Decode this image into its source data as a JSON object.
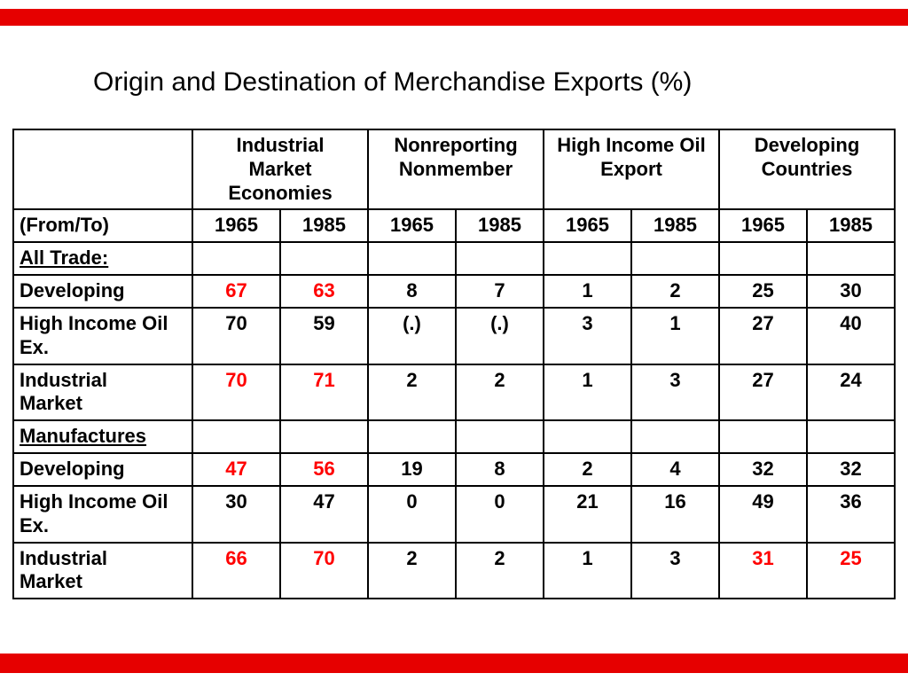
{
  "colors": {
    "accent_bar": "#e60000",
    "highlight_text": "#ff0000",
    "table_border": "#000000",
    "background": "#ffffff",
    "text": "#000000"
  },
  "slide": {
    "title": "Origin and Destination of Merchandise Exports (%)"
  },
  "chart_data": {
    "type": "table",
    "title": "Origin and Destination of Merchandise Exports (%)",
    "corner_label": "(From/To)",
    "column_groups": [
      {
        "label": "Industrial Market Economies",
        "lines": [
          "Industrial",
          "Market",
          "Economies"
        ],
        "years": [
          "1965",
          "1985"
        ]
      },
      {
        "label": "Nonreporting Nonmember",
        "lines": [
          "Nonreporting",
          "Nonmember"
        ],
        "years": [
          "1965",
          "1985"
        ]
      },
      {
        "label": "High Income Oil Export",
        "lines": [
          "High Income Oil",
          "Export"
        ],
        "years": [
          "1965",
          "1985"
        ]
      },
      {
        "label": "Developing Countries",
        "lines": [
          "Developing",
          "Countries"
        ],
        "years": [
          "1965",
          "1985"
        ]
      }
    ],
    "year_row": [
      "1965",
      "1985",
      "1965",
      "1985",
      "1965",
      "1985",
      "1965",
      "1985"
    ],
    "rows": [
      {
        "label": "All Trade:",
        "section": true,
        "lines": [
          "All Trade:"
        ],
        "cells": [
          {
            "v": ""
          },
          {
            "v": ""
          },
          {
            "v": ""
          },
          {
            "v": ""
          },
          {
            "v": ""
          },
          {
            "v": ""
          },
          {
            "v": ""
          },
          {
            "v": ""
          }
        ]
      },
      {
        "label": "Developing",
        "lines": [
          "Developing"
        ],
        "cells": [
          {
            "v": "67",
            "c": "red"
          },
          {
            "v": "63",
            "c": "red"
          },
          {
            "v": "8"
          },
          {
            "v": "7"
          },
          {
            "v": "1"
          },
          {
            "v": "2"
          },
          {
            "v": "25"
          },
          {
            "v": "30"
          }
        ]
      },
      {
        "label": "High Income Oil Ex.",
        "lines": [
          "High Income Oil",
          "Ex."
        ],
        "cells": [
          {
            "v": "70"
          },
          {
            "v": "59"
          },
          {
            "v": "(.)"
          },
          {
            "v": "(.)"
          },
          {
            "v": "3"
          },
          {
            "v": "1"
          },
          {
            "v": "27"
          },
          {
            "v": "40"
          }
        ]
      },
      {
        "label": "Industrial Market",
        "lines": [
          "Industrial",
          "Market"
        ],
        "cells": [
          {
            "v": "70",
            "c": "red"
          },
          {
            "v": "71",
            "c": "red"
          },
          {
            "v": "2"
          },
          {
            "v": "2"
          },
          {
            "v": "1"
          },
          {
            "v": "3"
          },
          {
            "v": "27"
          },
          {
            "v": "24"
          }
        ]
      },
      {
        "label": "Manufactures",
        "section": true,
        "lines": [
          "Manufactures"
        ],
        "cells": [
          {
            "v": ""
          },
          {
            "v": ""
          },
          {
            "v": ""
          },
          {
            "v": ""
          },
          {
            "v": ""
          },
          {
            "v": ""
          },
          {
            "v": ""
          },
          {
            "v": ""
          }
        ]
      },
      {
        "label": "Developing",
        "lines": [
          "Developing"
        ],
        "cells": [
          {
            "v": "47",
            "c": "red"
          },
          {
            "v": "56",
            "c": "red"
          },
          {
            "v": "19"
          },
          {
            "v": "8"
          },
          {
            "v": "2"
          },
          {
            "v": "4"
          },
          {
            "v": "32"
          },
          {
            "v": "32"
          }
        ]
      },
      {
        "label": "High Income Oil Ex.",
        "lines": [
          "High Income Oil",
          "Ex."
        ],
        "cells": [
          {
            "v": "30"
          },
          {
            "v": "47"
          },
          {
            "v": "0"
          },
          {
            "v": "0"
          },
          {
            "v": "21"
          },
          {
            "v": "16"
          },
          {
            "v": "49"
          },
          {
            "v": "36"
          }
        ]
      },
      {
        "label": "Industrial Market",
        "lines": [
          "Industrial",
          "Market"
        ],
        "cells": [
          {
            "v": "66",
            "c": "red"
          },
          {
            "v": "70",
            "c": "red"
          },
          {
            "v": "2"
          },
          {
            "v": "2"
          },
          {
            "v": "1"
          },
          {
            "v": "3"
          },
          {
            "v": "31",
            "c": "red"
          },
          {
            "v": "25",
            "c": "red"
          }
        ]
      }
    ]
  }
}
